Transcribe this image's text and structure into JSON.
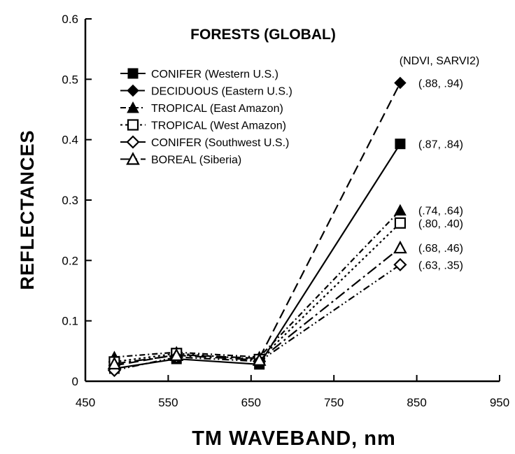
{
  "chart_data": {
    "type": "line",
    "title": "FORESTS  (GLOBAL)",
    "xlabel": "TM   WAVEBAND, nm",
    "ylabel": "REFLECTANCES",
    "xlim": [
      450,
      950
    ],
    "ylim": [
      0,
      0.6
    ],
    "xticks": [
      450,
      550,
      650,
      750,
      850,
      950
    ],
    "yticks": [
      0,
      0.1,
      0.2,
      0.3,
      0.4,
      0.5,
      0.6
    ],
    "ytick_labels": [
      "0",
      "0.1",
      "0.2",
      "0.3",
      "0.4",
      "0.5",
      "0.6"
    ],
    "xtick_labels": [
      "450",
      "550",
      "650",
      "750",
      "850",
      "950"
    ],
    "legend_placement": "top-left",
    "annotation_header": "(NDVI, SARVI2)",
    "x": [
      485,
      560,
      660,
      830
    ],
    "series": [
      {
        "name": "CONIFER (Western U.S.)",
        "marker": "square-filled",
        "dash": "solid",
        "values": [
          0.021,
          0.037,
          0.028,
          0.393
        ],
        "annotation": "(.87, .84)"
      },
      {
        "name": "DECIDUOUS (Eastern U.S.)",
        "marker": "diamond-filled",
        "dash": "long-dash",
        "values": [
          0.026,
          0.044,
          0.038,
          0.494
        ],
        "annotation": "(.88, .94)"
      },
      {
        "name": "TROPICAL (East Amazon)",
        "marker": "triangle-filled",
        "dash": "dash-dot",
        "values": [
          0.04,
          0.048,
          0.04,
          0.283
        ],
        "annotation": "(.74, .64)"
      },
      {
        "name": "TROPICAL (West Amazon)",
        "marker": "square-open",
        "dash": "dotted",
        "values": [
          0.032,
          0.046,
          0.036,
          0.262
        ],
        "annotation": "(.80, .40)"
      },
      {
        "name": "CONIFER (Southwest U.S.)",
        "marker": "diamond-open",
        "dash": "dash-dot-dot",
        "values": [
          0.018,
          0.04,
          0.033,
          0.193
        ],
        "annotation": "(.63, .35)"
      },
      {
        "name": "BOREAL (Siberia)",
        "marker": "triangle-open",
        "dash": "long-dash-dot",
        "values": [
          0.029,
          0.043,
          0.035,
          0.221
        ],
        "annotation": "(.68, .46)"
      }
    ]
  }
}
